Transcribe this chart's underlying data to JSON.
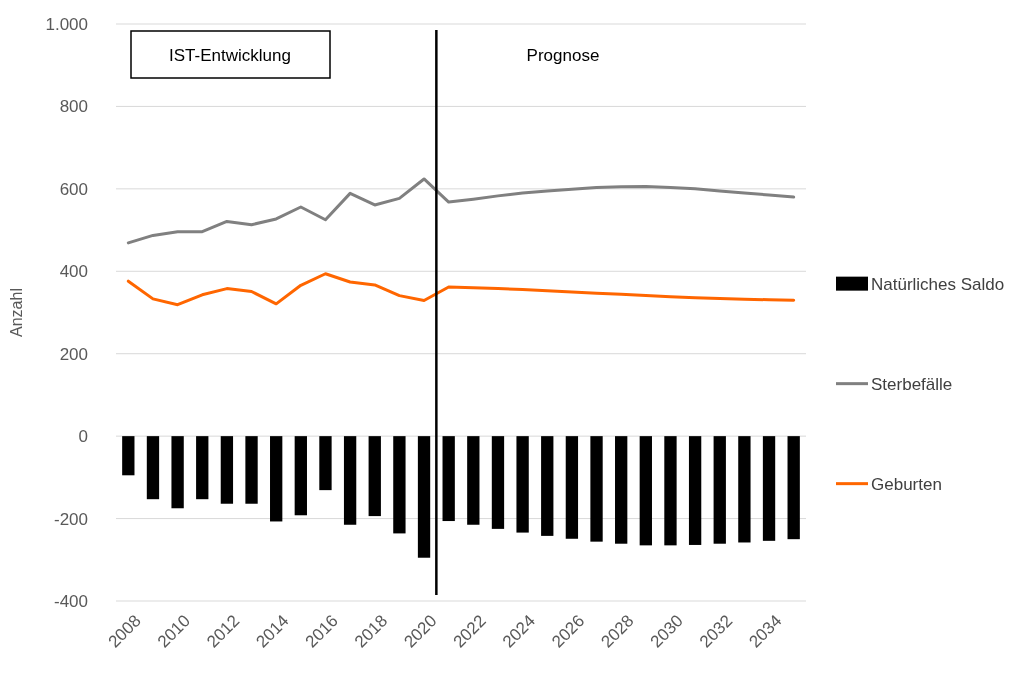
{
  "chart_data": {
    "type": "bar",
    "ylabel": "Anzahl",
    "x": [
      2008,
      2009,
      2010,
      2011,
      2012,
      2013,
      2014,
      2015,
      2016,
      2017,
      2018,
      2019,
      2020,
      2021,
      2022,
      2023,
      2024,
      2025,
      2026,
      2027,
      2028,
      2029,
      2030,
      2031,
      2032,
      2033,
      2034,
      2035
    ],
    "series": [
      {
        "name": "Natürliches Saldo",
        "color": "#000000",
        "values": [
          -95,
          -153,
          -175,
          -153,
          -164,
          -164,
          -207,
          -192,
          -131,
          -215,
          -194,
          -236,
          -295,
          -206,
          -215,
          -225,
          -234,
          -242,
          -249,
          -256,
          -261,
          -265,
          -265,
          -264,
          -261,
          -258,
          -254,
          -250
        ]
      },
      {
        "name": "Sterbefälle",
        "type": "line",
        "color": "#808080",
        "values": [
          469,
          487,
          496,
          496,
          521,
          513,
          527,
          556,
          525,
          589,
          561,
          577,
          624,
          568,
          575,
          583,
          590,
          595,
          599,
          603,
          605,
          606,
          603,
          600,
          595,
          590,
          585,
          580
        ]
      },
      {
        "name": "Geburten",
        "type": "line",
        "color": "#ff6600",
        "values": [
          376,
          333,
          319,
          343,
          358,
          351,
          321,
          366,
          394,
          374,
          367,
          341,
          329,
          362,
          360,
          358,
          356,
          353,
          350,
          347,
          344,
          341,
          338,
          336,
          334,
          332,
          331,
          330
        ]
      }
    ],
    "xlim": [
      2007.5,
      2035.5
    ],
    "xticks": [
      2008,
      2010,
      2012,
      2014,
      2016,
      2018,
      2020,
      2022,
      2024,
      2026,
      2028,
      2030,
      2032,
      2034
    ],
    "ylim": [
      -400,
      1000
    ],
    "yticks": [
      -400,
      -200,
      0,
      200,
      400,
      600,
      800,
      {
        "value": 1000,
        "label": "1.000"
      }
    ],
    "grid": "y",
    "legend": "right",
    "line_style": "solid",
    "marker": "none",
    "ref_lines": [
      {
        "axis": "x",
        "value": 2020.5,
        "color": "#000000"
      }
    ],
    "annotations": [
      "IST-Entwicklung",
      "Prognose"
    ]
  }
}
